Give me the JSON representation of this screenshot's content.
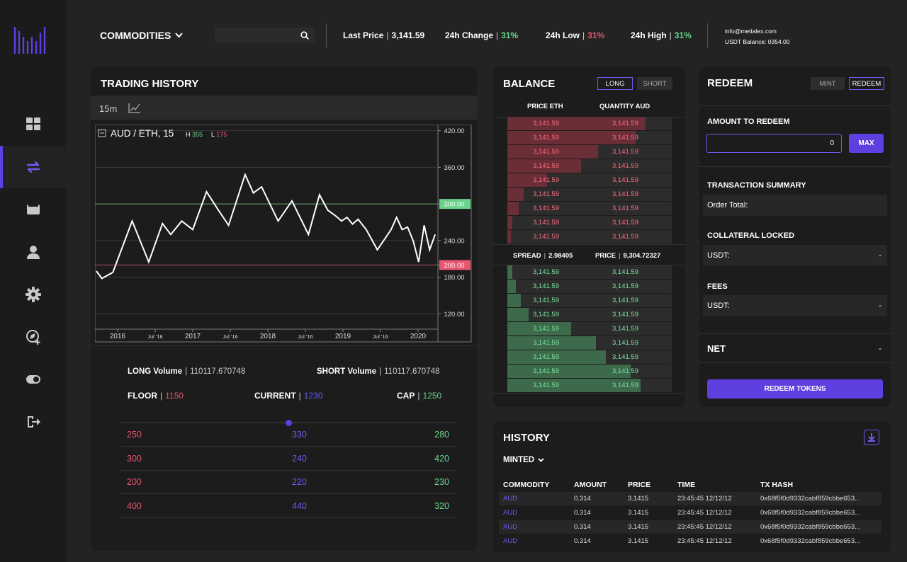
{
  "nav": {
    "items": [
      {
        "icon": "dashboard-grid-icon",
        "active": false
      },
      {
        "icon": "exchange-arrows-icon",
        "active": true
      },
      {
        "icon": "wallet-icon",
        "active": false
      },
      {
        "icon": "user-icon",
        "active": false
      },
      {
        "icon": "gear-icon",
        "active": false
      },
      {
        "icon": "compass-plus-icon",
        "active": false
      },
      {
        "icon": "toggle-icon",
        "active": false
      },
      {
        "icon": "logout-icon",
        "active": false
      }
    ]
  },
  "header": {
    "category": "COMMODITIES",
    "last_price_label": "Last Price",
    "last_price": "3,141.59",
    "change_label": "24h Change",
    "change": "31%",
    "low_label": "24h Low",
    "low": "31%",
    "high_label": "24h High",
    "high": "31%",
    "email": "info@mettalex.com",
    "balance": "USDT Balance: 0354.00"
  },
  "trading": {
    "title": "TRADING HISTORY",
    "interval": "15m",
    "symbol": "AUD / ETH,  15",
    "h_label": "H",
    "h_value": "355",
    "l_label": "L",
    "l_value": "175",
    "long_volume_label": "LONG Volume",
    "long_volume": "110117.670748",
    "short_volume_label": "SHORT Volume",
    "short_volume": "110117.670748",
    "floor_label": "FLOOR",
    "floor": "1150",
    "current_label": "CURRENT",
    "current": "1230",
    "cap_label": "CAP",
    "cap": "1250",
    "levels": [
      [
        "250",
        "330",
        "280"
      ],
      [
        "300",
        "240",
        "420"
      ],
      [
        "200",
        "220",
        "230"
      ],
      [
        "400",
        "440",
        "320"
      ]
    ],
    "slider_value": 0.5
  },
  "chart_data": {
    "type": "line",
    "x_ticks": [
      "2016",
      "Jul '16",
      "2017",
      "Jul '16",
      "2018",
      "Jul '16",
      "2019",
      "Jul '16",
      "2020"
    ],
    "y_ticks": [
      "420.00",
      "360.00",
      "300.00",
      "240.00",
      "200.00",
      "180.00",
      "120.00"
    ],
    "ylim": [
      95,
      430
    ],
    "hlines": [
      {
        "value": 300,
        "label": "300.00",
        "color": "#67d48b"
      },
      {
        "value": 200,
        "label": "200.00",
        "color": "#e8556f"
      }
    ],
    "series": [
      {
        "values": [
          [
            0,
            190
          ],
          [
            0.1,
            178
          ],
          [
            0.3,
            188
          ],
          [
            0.65,
            272
          ],
          [
            0.95,
            205
          ],
          [
            1.2,
            268
          ],
          [
            1.35,
            250
          ],
          [
            1.55,
            272
          ],
          [
            1.75,
            258
          ],
          [
            2.0,
            320
          ],
          [
            2.2,
            292
          ],
          [
            2.4,
            265
          ],
          [
            2.7,
            348
          ],
          [
            2.85,
            318
          ],
          [
            3.0,
            328
          ],
          [
            3.3,
            272
          ],
          [
            3.55,
            305
          ],
          [
            3.85,
            250
          ],
          [
            4.05,
            315
          ],
          [
            4.2,
            290
          ],
          [
            4.35,
            280
          ],
          [
            4.45,
            272
          ],
          [
            4.55,
            278
          ],
          [
            4.65,
            267
          ],
          [
            4.75,
            275
          ],
          [
            4.9,
            258
          ],
          [
            5.1,
            225
          ],
          [
            5.35,
            258
          ],
          [
            5.45,
            278
          ],
          [
            5.55,
            258
          ],
          [
            5.65,
            262
          ],
          [
            5.75,
            240
          ],
          [
            5.85,
            205
          ],
          [
            5.95,
            265
          ],
          [
            6.05,
            225
          ],
          [
            6.15,
            250
          ]
        ]
      }
    ]
  },
  "balance": {
    "title": "BALANCE",
    "long": "LONG",
    "short": "SHORT",
    "col_price": "PRICE ETH",
    "col_qty": "QUANTITY AUD",
    "spread_label": "SPREAD",
    "spread": "2.98405",
    "price_label": "PRICE",
    "price": "9,304.72327",
    "asks": [
      {
        "price": "3,141.59",
        "qty": "3,141.59",
        "depth": 0.84
      },
      {
        "price": "3,141.59",
        "qty": "3,141.59",
        "depth": 0.78
      },
      {
        "price": "3,141.59",
        "qty": "3,141.59",
        "depth": 0.55
      },
      {
        "price": "3,141.59",
        "qty": "3,141.59",
        "depth": 0.45
      },
      {
        "price": "3,141.59",
        "qty": "3,141.59",
        "depth": 0.24
      },
      {
        "price": "3,141.59",
        "qty": "3,141.59",
        "depth": 0.1
      },
      {
        "price": "3,141.59",
        "qty": "3,141.59",
        "depth": 0.07
      },
      {
        "price": "3,141.59",
        "qty": "3,141.59",
        "depth": 0.03
      },
      {
        "price": "3,141.59",
        "qty": "3,141.59",
        "depth": 0.02
      }
    ],
    "bids": [
      {
        "price": "3,141.59",
        "qty": "3,141.59",
        "depth": 0.03
      },
      {
        "price": "3,141.59",
        "qty": "3,141.59",
        "depth": 0.05
      },
      {
        "price": "3,141.59",
        "qty": "3,141.59",
        "depth": 0.08
      },
      {
        "price": "3,141.59",
        "qty": "3,141.59",
        "depth": 0.13
      },
      {
        "price": "3,141.59",
        "qty": "3,141.59",
        "depth": 0.39
      },
      {
        "price": "3,141.59",
        "qty": "3,141.59",
        "depth": 0.54
      },
      {
        "price": "3,141.59",
        "qty": "3,141.59",
        "depth": 0.6
      },
      {
        "price": "3,141.59",
        "qty": "3,141.59",
        "depth": 0.75
      },
      {
        "price": "3,141.59",
        "qty": "3,141.59",
        "depth": 0.81
      }
    ]
  },
  "redeem": {
    "title": "REDEEM",
    "mint": "MINT",
    "redeem_tab": "REDEEM",
    "amount_label": "AMOUNT TO REDEEM",
    "amount": "0",
    "max": "MAX",
    "summary_label": "TRANSACTION SUMMARY",
    "order_total": "Order Total:",
    "collateral_label": "COLLATERAL LOCKED",
    "collateral_unit": "USDT:",
    "collateral_value": "-",
    "fees_label": "FEES",
    "fees_unit": "USDT:",
    "fees_value": "-",
    "net_label": "NET",
    "net_value": "-",
    "submit": "REDEEM TOKENS"
  },
  "history": {
    "title": "HISTORY",
    "filter": "MINTED",
    "columns": [
      "COMMODITY",
      "AMOUNT",
      "PRICE",
      "TIME",
      "TX HASH"
    ],
    "rows": [
      [
        "AUD",
        "0.314",
        "3.1415",
        "23:45:45 12/12/12",
        "0x68f5f0d9332cabf859cbbe653..."
      ],
      [
        "AUD",
        "0.314",
        "3.1415",
        "23:45:45 12/12/12",
        "0x68f5f0d9332cabf859cbbe653..."
      ],
      [
        "AUD",
        "0.314",
        "3.1415",
        "23:45:45 12/12/12",
        "0x68f5f0d9332cabf859cbbe653..."
      ],
      [
        "AUD",
        "0.314",
        "3.1415",
        "23:45:45 12/12/12",
        "0x68f5f0d9332cabf859cbbe653..."
      ]
    ]
  },
  "colors": {
    "accent": "#5f3fe0",
    "green": "#67d48b",
    "red": "#e8556f",
    "purple_text": "#6b5cf0",
    "bg": "#232323",
    "panel": "#1c1c1c"
  }
}
